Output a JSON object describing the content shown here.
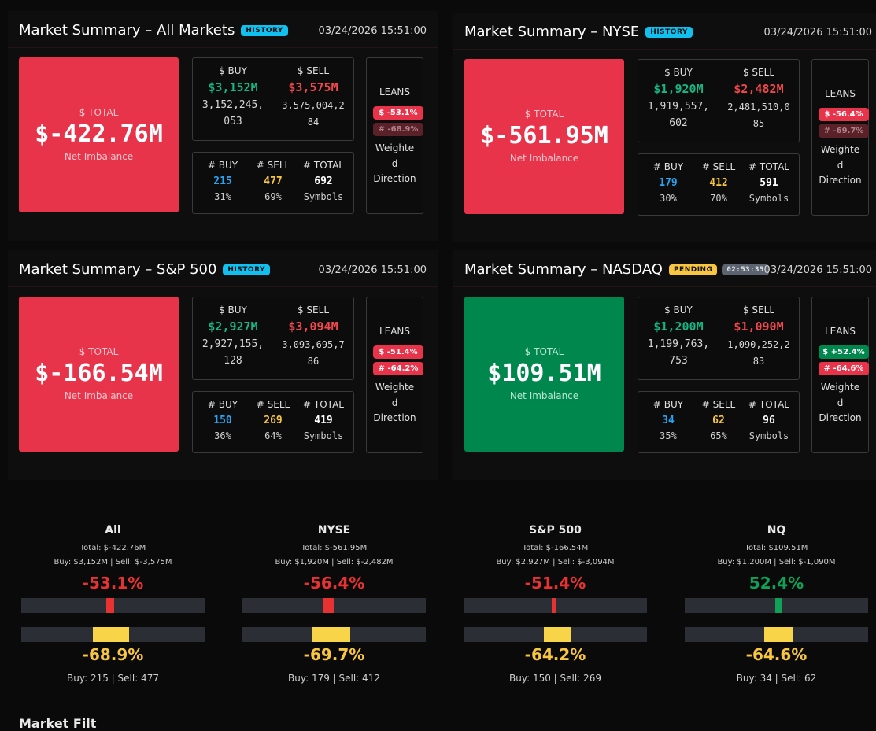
{
  "panels": [
    {
      "title": "Market Summary – All Markets",
      "badge": "HISTORY",
      "timestamp": "03/24/2026 15:51:00",
      "total_label": "$ TOTAL",
      "total": "$-422.76M",
      "total_sub": "Net Imbalance",
      "total_color": "red",
      "buy_label": "$ BUY",
      "sell_label": "$ SELL",
      "buy_m": "$3,152M",
      "sell_m": "$3,575M",
      "buy_full_1": "3,152,245,",
      "buy_full_2": "053",
      "sell_full_1": "3,575,004,2",
      "sell_full_2": "84",
      "nbuy_label": "# BUY",
      "nsell_label": "# SELL",
      "ntotal_label": "# TOTAL",
      "nbuy": "215",
      "nsell": "477",
      "ntotal": "692",
      "nbuy_pct": "31%",
      "nsell_pct": "69%",
      "symbols": "Symbols",
      "leans": "LEANS",
      "pill1": "$ -53.1%",
      "pill2": "# -68.9%",
      "lean_desc": "Weighte d Direction"
    },
    {
      "title": "Market Summary – NYSE",
      "badge": "HISTORY",
      "timestamp": "03/24/2026 15:51:00",
      "total_label": "$ TOTAL",
      "total": "$-561.95M",
      "total_sub": "Net Imbalance",
      "total_color": "red",
      "buy_label": "$ BUY",
      "sell_label": "$ SELL",
      "buy_m": "$1,920M",
      "sell_m": "$2,482M",
      "buy_full_1": "1,919,557,",
      "buy_full_2": "602",
      "sell_full_1": "2,481,510,0",
      "sell_full_2": "85",
      "nbuy_label": "# BUY",
      "nsell_label": "# SELL",
      "ntotal_label": "# TOTAL",
      "nbuy": "179",
      "nsell": "412",
      "ntotal": "591",
      "nbuy_pct": "30%",
      "nsell_pct": "70%",
      "symbols": "Symbols",
      "leans": "LEANS",
      "pill1": "$ -56.4%",
      "pill2": "# -69.7%",
      "lean_desc": "Weighte d Direction"
    },
    {
      "title": "Market Summary – S&P 500",
      "badge": "HISTORY",
      "timestamp": "03/24/2026 15:51:00",
      "total_label": "$ TOTAL",
      "total": "$-166.54M",
      "total_sub": "Net Imbalance",
      "total_color": "red",
      "buy_label": "$ BUY",
      "sell_label": "$ SELL",
      "buy_m": "$2,927M",
      "sell_m": "$3,094M",
      "buy_full_1": "2,927,155,",
      "buy_full_2": "128",
      "sell_full_1": "3,093,695,7",
      "sell_full_2": "86",
      "nbuy_label": "# BUY",
      "nsell_label": "# SELL",
      "ntotal_label": "# TOTAL",
      "nbuy": "150",
      "nsell": "269",
      "ntotal": "419",
      "nbuy_pct": "36%",
      "nsell_pct": "64%",
      "symbols": "Symbols",
      "leans": "LEANS",
      "pill1": "$ -51.4%",
      "pill2": "# -64.2%",
      "lean_desc": "Weighte d Direction"
    },
    {
      "title": "Market Summary – NASDAQ",
      "badge": "PENDING",
      "timer": "02:53:35",
      "timestamp": "03/24/2026 15:51:00",
      "total_label": "$ TOTAL",
      "total": "$109.51M",
      "total_sub": "Net Imbalance",
      "total_color": "green",
      "buy_label": "$ BUY",
      "sell_label": "$ SELL",
      "buy_m": "$1,200M",
      "sell_m": "$1,090M",
      "buy_full_1": "1,199,763,",
      "buy_full_2": "753",
      "sell_full_1": "1,090,252,2",
      "sell_full_2": "83",
      "nbuy_label": "# BUY",
      "nsell_label": "# SELL",
      "ntotal_label": "# TOTAL",
      "nbuy": "34",
      "nsell": "62",
      "ntotal": "96",
      "nbuy_pct": "35%",
      "nsell_pct": "65%",
      "symbols": "Symbols",
      "leans": "LEANS",
      "pill1": "$ +52.4%",
      "pill2": "# -64.6%",
      "lean_desc": "Weighte d Direction"
    }
  ],
  "gauges": [
    {
      "name": "All",
      "total": "Total: $-422.76M",
      "buysell": "Buy: $3,152M | Sell: $-3,575M",
      "dollar_pct": "-53.1%",
      "dollar_value": -53.1,
      "count_pct": "-68.9%",
      "count_value": -68.9,
      "foot": "Buy: 215 | Sell: 477"
    },
    {
      "name": "NYSE",
      "total": "Total: $-561.95M",
      "buysell": "Buy: $1,920M | Sell: $-2,482M",
      "dollar_pct": "-56.4%",
      "dollar_value": -56.4,
      "count_pct": "-69.7%",
      "count_value": -69.7,
      "foot": "Buy: 179 | Sell: 412"
    },
    {
      "name": "S&P 500",
      "total": "Total: $-166.54M",
      "buysell": "Buy: $2,927M | Sell: $-3,094M",
      "dollar_pct": "-51.4%",
      "dollar_value": -51.4,
      "count_pct": "-64.2%",
      "count_value": -64.2,
      "foot": "Buy: 150 | Sell: 269"
    },
    {
      "name": "NQ",
      "total": "Total: $109.51M",
      "buysell": "Buy: $1,200M | Sell: $-1,090M",
      "dollar_pct": "52.4%",
      "dollar_value": 52.4,
      "count_pct": "-64.6%",
      "count_value": -64.6,
      "foot": "Buy: 34 | Sell: 62"
    }
  ],
  "footer_heading": "Market Filt",
  "colors": {
    "red": "#e8344b",
    "green": "#00874e",
    "yellow": "#f8c640",
    "blue": "#28a4f0",
    "track": "#2b2e35"
  }
}
